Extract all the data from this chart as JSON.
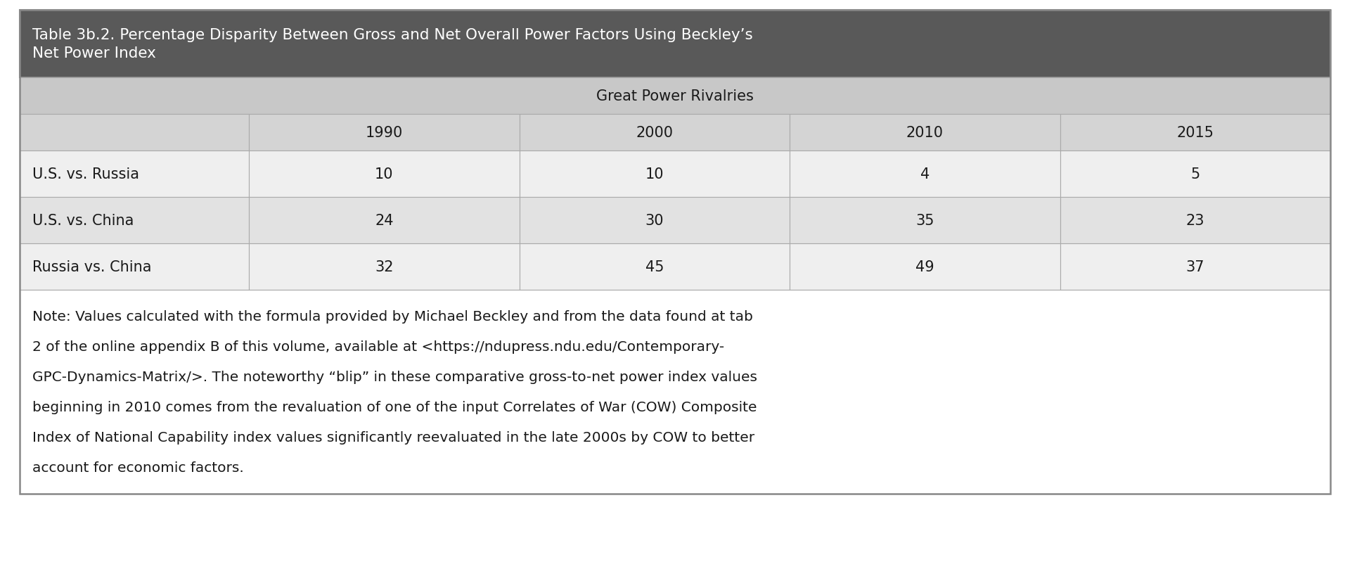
{
  "title_line1": "Table 3b.2. Percentage Disparity Between Gross and Net Overall Power Factors Using Beckley’s",
  "title_line2": "Net Power Index",
  "subheader": "Great Power Rivalries",
  "years": [
    "1990",
    "2000",
    "2010",
    "2015"
  ],
  "rows": [
    {
      "label": "U.S. vs. Russia",
      "values": [
        "10",
        "10",
        "4",
        "5"
      ]
    },
    {
      "label": "U.S. vs. China",
      "values": [
        "24",
        "30",
        "35",
        "23"
      ]
    },
    {
      "label": "Russia vs. China",
      "values": [
        "32",
        "45",
        "49",
        "37"
      ]
    }
  ],
  "note_lines": [
    "Note: Values calculated with the formula provided by Michael Beckley and from the data found at tab",
    "2 of the online appendix B of this volume, available at <https://ndupress.ndu.edu/Contemporary-",
    "GPC-Dynamics-Matrix/>. The noteworthy “blip” in these comparative gross-to-net power index values",
    "beginning in 2010 comes from the revaluation of one of the input Correlates of War (COW) Composite",
    "Index of National Capability index values significantly reevaluated in the late 2000s by COW to better",
    "account for economic factors."
  ],
  "title_bg": "#595959",
  "title_fg": "#ffffff",
  "subheader_bg": "#c8c8c8",
  "subheader_fg": "#1a1a1a",
  "year_row_bg": "#d4d4d4",
  "year_row_fg": "#1a1a1a",
  "data_row_bg_odd": "#efefef",
  "data_row_bg_even": "#e2e2e2",
  "data_row_fg": "#1a1a1a",
  "note_bg": "#ffffff",
  "note_fg": "#1a1a1a",
  "border_color": "#aaaaaa",
  "outer_border_color": "#888888",
  "fig_bg": "#ffffff"
}
